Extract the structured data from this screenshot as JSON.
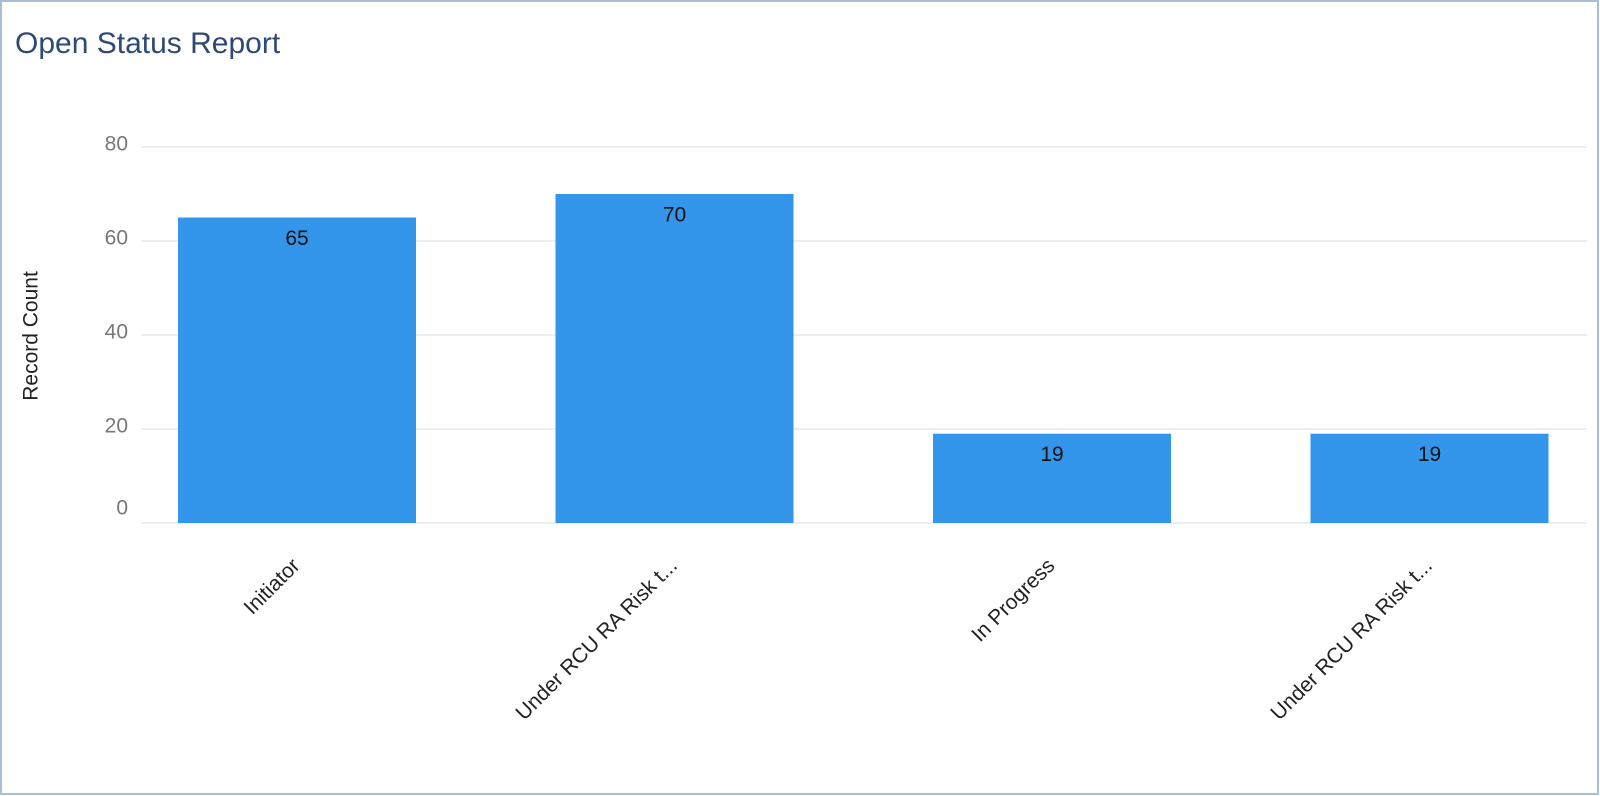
{
  "chart_data": {
    "type": "bar",
    "title": "Open Status Report",
    "y_label": "Record Count",
    "categories": [
      "Initiator",
      "Under RCU RA Risk t...",
      "In Progress",
      "Under RCU RA Risk t..."
    ],
    "values": [
      65,
      70,
      19,
      19
    ],
    "color": "#3396ea",
    "ylim": [
      0,
      80
    ],
    "yticks": [
      0,
      20,
      40,
      60,
      80
    ],
    "grid": true
  }
}
